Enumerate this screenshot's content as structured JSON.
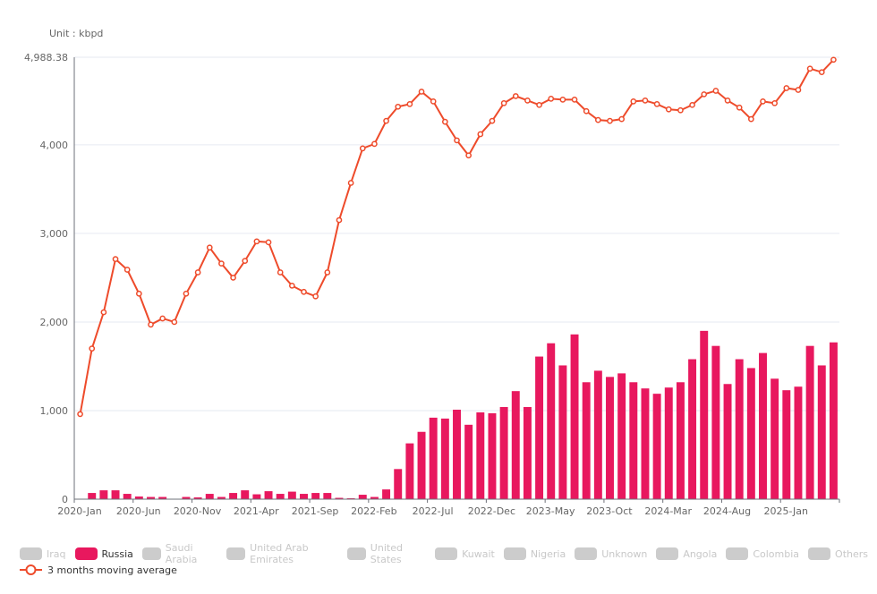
{
  "unit_label": "Unit : kbpd",
  "legend": {
    "items": [
      {
        "label": "Iraq",
        "active": false
      },
      {
        "label": "Russia",
        "active": true
      },
      {
        "label": "Saudi Arabia",
        "active": false
      },
      {
        "label": "United Arab Emirates",
        "active": false
      },
      {
        "label": "United States",
        "active": false
      },
      {
        "label": "Kuwait",
        "active": false
      },
      {
        "label": "Nigeria",
        "active": false
      },
      {
        "label": "Unknown",
        "active": false
      },
      {
        "label": "Angola",
        "active": false
      },
      {
        "label": "Colombia",
        "active": false
      },
      {
        "label": "Others",
        "active": false
      }
    ],
    "line_label": "3 months moving average"
  },
  "colors": {
    "russia_bar": "#e8185e",
    "moving_average_line": "#ee4b2b",
    "inactive_swatch": "#cccccc",
    "gridline": "#e6eaf2",
    "axis": "#6e7079"
  },
  "chart_data": {
    "type": "bar+line",
    "title": "",
    "ylabel": "Unit : kbpd",
    "ylim": [
      0,
      4988.38
    ],
    "yticks": [
      "0",
      "1,000",
      "2,000",
      "3,000",
      "4,000",
      "4,988.38"
    ],
    "xtick_labels": [
      "2020-Jan",
      "2020-Jun",
      "2020-Nov",
      "2021-Apr",
      "2021-Sep",
      "2022-Feb",
      "2022-Jul",
      "2022-Dec",
      "2023-May",
      "2023-Oct",
      "2024-Mar",
      "2024-Aug",
      "2025-Jan"
    ],
    "grid": true,
    "legend_position": "bottom",
    "categories": [
      "2020-Jan",
      "2020-Feb",
      "2020-Mar",
      "2020-Apr",
      "2020-May",
      "2020-Jun",
      "2020-Jul",
      "2020-Aug",
      "2020-Sep",
      "2020-Oct",
      "2020-Nov",
      "2020-Dec",
      "2021-Jan",
      "2021-Feb",
      "2021-Mar",
      "2021-Apr",
      "2021-May",
      "2021-Jun",
      "2021-Jul",
      "2021-Aug",
      "2021-Sep",
      "2021-Oct",
      "2021-Nov",
      "2021-Dec",
      "2022-Jan",
      "2022-Feb",
      "2022-Mar",
      "2022-Apr",
      "2022-May",
      "2022-Jun",
      "2022-Jul",
      "2022-Aug",
      "2022-Sep",
      "2022-Oct",
      "2022-Nov",
      "2022-Dec",
      "2023-Jan",
      "2023-Feb",
      "2023-Mar",
      "2023-Apr",
      "2023-May",
      "2023-Jun",
      "2023-Jul",
      "2023-Aug",
      "2023-Sep",
      "2023-Oct",
      "2023-Nov",
      "2023-Dec",
      "2024-Jan",
      "2024-Feb",
      "2024-Mar",
      "2024-Apr",
      "2024-May",
      "2024-Jun",
      "2024-Jul",
      "2024-Aug",
      "2024-Sep",
      "2024-Oct",
      "2024-Nov",
      "2024-Dec",
      "2025-Jan",
      "2025-Feb",
      "2025-Mar",
      "2025-Apr",
      "2025-May"
    ],
    "series": [
      {
        "name": "Russia",
        "type": "bar",
        "values": [
          0,
          70,
          100,
          100,
          60,
          30,
          25,
          25,
          0,
          25,
          20,
          60,
          25,
          70,
          100,
          55,
          90,
          60,
          85,
          60,
          70,
          70,
          15,
          10,
          50,
          25,
          110,
          340,
          630,
          760,
          920,
          910,
          1010,
          840,
          980,
          970,
          1040,
          1220,
          1040,
          1610,
          1760,
          1510,
          1860,
          1320,
          1450,
          1380,
          1420,
          1320,
          1250,
          1190,
          1260,
          1320,
          1580,
          1900,
          1730,
          1300,
          1580,
          1480,
          1650,
          1360,
          1230,
          1270,
          1730,
          1510,
          1770
        ]
      },
      {
        "name": "3 months moving average",
        "type": "line",
        "values": [
          960,
          1700,
          2110,
          2710,
          2590,
          2320,
          1970,
          2040,
          2000,
          2320,
          2560,
          2840,
          2660,
          2500,
          2690,
          2910,
          2900,
          2560,
          2410,
          2340,
          2290,
          2560,
          3150,
          3570,
          3960,
          4010,
          4270,
          4430,
          4460,
          4600,
          4490,
          4260,
          4050,
          3880,
          4120,
          4270,
          4470,
          4550,
          4500,
          4450,
          4520,
          4510,
          4510,
          4380,
          4280,
          4270,
          4290,
          4490,
          4500,
          4460,
          4400,
          4390,
          4450,
          4570,
          4610,
          4500,
          4420,
          4290,
          4490,
          4470,
          4640,
          4620,
          4860,
          4820,
          4960
        ]
      }
    ]
  }
}
